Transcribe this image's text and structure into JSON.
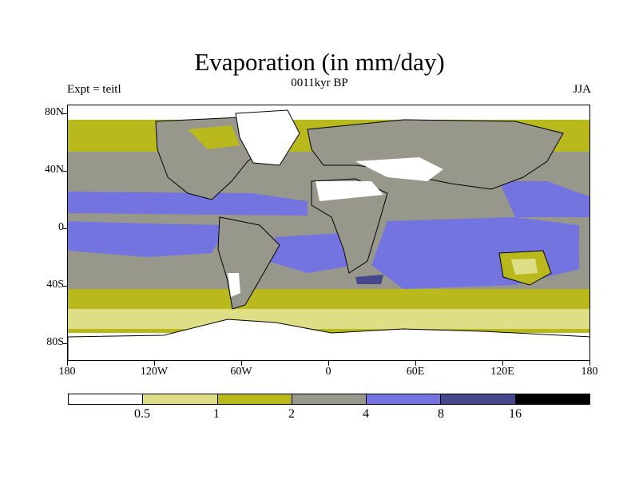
{
  "title": "Evaporation (in mm/day)",
  "subtitle": "0011kyr BP",
  "expt_label": "Expt = teitl",
  "season": "JJA",
  "lat_labels": [
    "80N",
    "40N",
    "0",
    "40S",
    "80S"
  ],
  "lon_labels": [
    "180",
    "120W",
    "60W",
    "0",
    "60E",
    "120E",
    "180"
  ],
  "colorbar": {
    "thresholds": [
      "0.5",
      "1",
      "2",
      "4",
      "8",
      "16"
    ],
    "colors": [
      "#ffffff",
      "#dede86",
      "#b9b91e",
      "#97978b",
      "#7474e0",
      "#47478e",
      "#000000"
    ]
  },
  "map_legend": {
    "land_ocean_outline": "#000000"
  }
}
